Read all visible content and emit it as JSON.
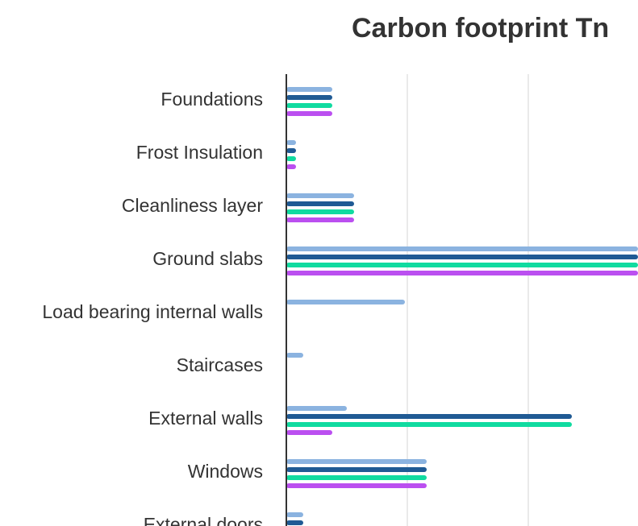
{
  "chart_data": {
    "type": "bar",
    "orientation": "horizontal",
    "title": "Carbon footprint Tn",
    "categories": [
      "Foundations",
      "Frost Insulation",
      "Cleanliness layer",
      "Ground slabs",
      "Load bearing internal walls",
      "Staircases",
      "External walls",
      "Windows",
      "External doors"
    ],
    "series": [
      {
        "color": "#8bb3e0",
        "values": [
          19,
          4,
          28,
          155,
          49,
          7,
          25,
          58,
          7
        ]
      },
      {
        "color": "#1f5a94",
        "values": [
          19,
          4,
          28,
          155,
          0,
          0,
          118,
          58,
          7
        ]
      },
      {
        "color": "#10dba0",
        "values": [
          19,
          4,
          28,
          155,
          0,
          0,
          118,
          58,
          0
        ]
      },
      {
        "color": "#bb4ff0",
        "values": [
          19,
          4,
          28,
          155,
          0,
          0,
          19,
          58,
          0
        ]
      }
    ],
    "xlim": [
      0,
      150
    ],
    "grid": "vertical"
  }
}
